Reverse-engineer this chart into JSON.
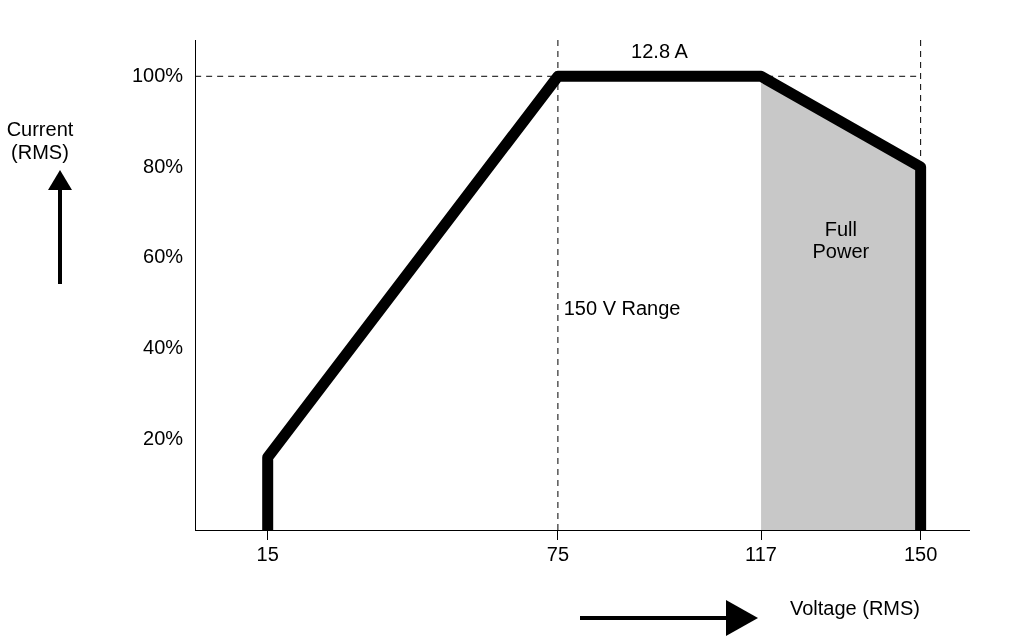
{
  "chart_data": {
    "type": "line",
    "xlabel": "Voltage (RMS)",
    "ylabel": "Current (RMS)",
    "x": [
      15,
      15,
      75,
      117,
      150,
      150
    ],
    "series": [
      {
        "color": "#000000",
        "values": [
          0,
          16,
          100,
          100,
          80,
          0
        ]
      }
    ],
    "xlim": [
      0,
      160
    ],
    "xticks": [
      15,
      75,
      117,
      150
    ],
    "ylim": [
      0,
      108
    ],
    "yticks": [
      {
        "value": 20,
        "label": "20%"
      },
      {
        "value": 40,
        "label": "40%"
      },
      {
        "value": 60,
        "label": "60%"
      },
      {
        "value": 80,
        "label": "80%"
      },
      {
        "value": 100,
        "label": "100%"
      }
    ],
    "ref_lines": [
      {
        "axis": "y",
        "value": 100,
        "line_style": "dashed"
      },
      {
        "axis": "x",
        "value": 75,
        "line_style": "dashed"
      },
      {
        "axis": "x",
        "value": 150,
        "line_style": "dashed"
      }
    ],
    "bands": [
      {
        "axis": "x",
        "from": 117,
        "to": 150,
        "label": "Full Power",
        "color": "#c8c8c8"
      }
    ],
    "annotations": [
      {
        "text": "12.8 A",
        "x": 96,
        "y": 100
      },
      "150 V Range"
    ],
    "grid": false,
    "legend": false,
    "marker": "none",
    "line_style": "solid"
  }
}
